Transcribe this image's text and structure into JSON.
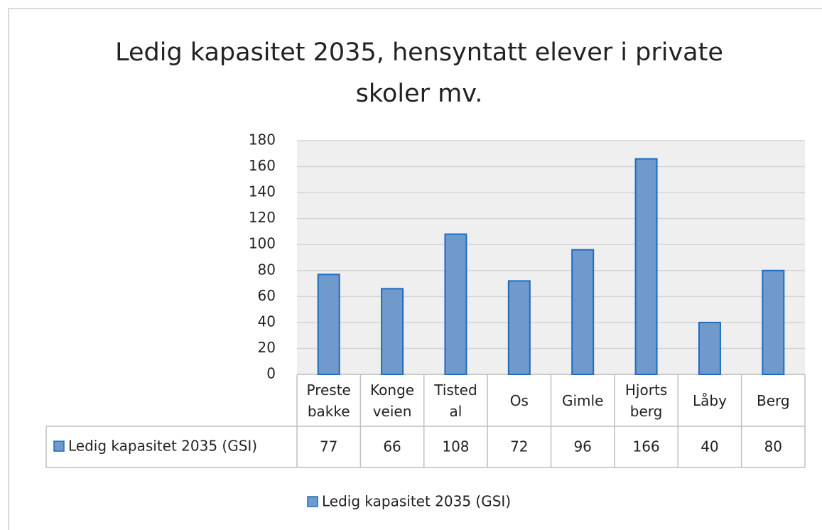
{
  "chart_data": {
    "type": "bar",
    "title": "Ledig kapasitet 2035, hensyntatt elever i private skoler mv.",
    "categories": [
      "Prestebakke",
      "Kongeveien",
      "Tistedal",
      "Os",
      "Gimle",
      "Hjortsberg",
      "Låby",
      "Berg"
    ],
    "series": [
      {
        "name": "Ledig kapasitet 2035 (GSI)",
        "color": "#7099cc",
        "values": [
          77,
          66,
          108,
          72,
          96,
          166,
          40,
          80
        ]
      }
    ],
    "ylim": [
      0,
      180
    ],
    "yticks": [
      0,
      20,
      40,
      60,
      80,
      100,
      120,
      140,
      160,
      180
    ],
    "grid": true,
    "legend": "bottom"
  }
}
